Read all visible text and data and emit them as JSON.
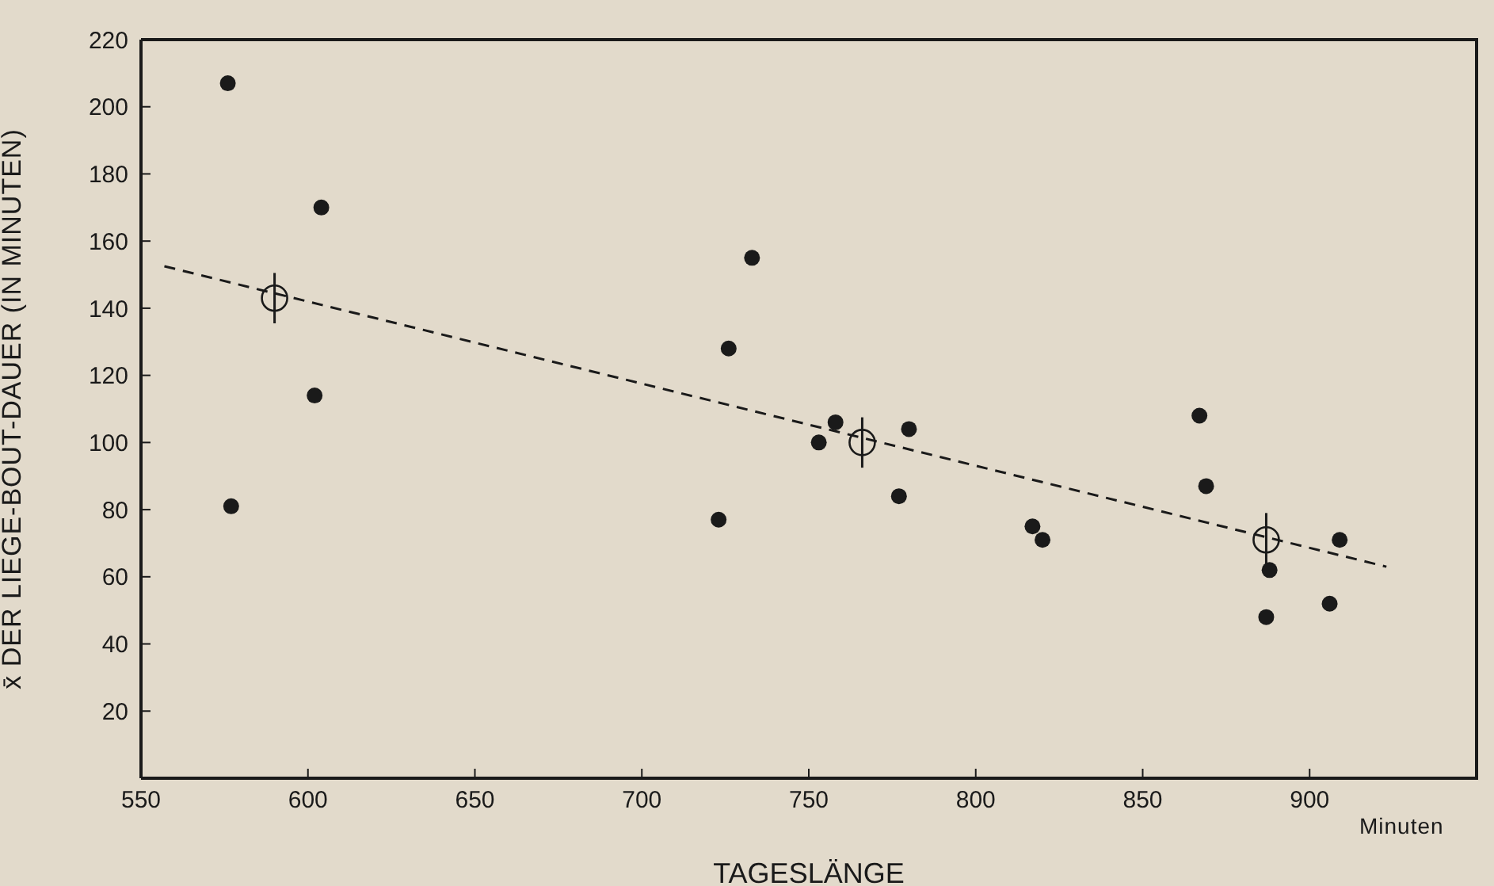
{
  "chart_data": {
    "type": "scatter",
    "xlabel": "TAGESLÄNGE",
    "ylabel": "x̄ DER LIEGE-BOUT-DAUER (IN MINUTEN)",
    "xlim": [
      550,
      950
    ],
    "xticks": [
      550,
      600,
      650,
      700,
      750,
      800,
      850,
      900
    ],
    "ylim": [
      0,
      220
    ],
    "yticks": [
      20,
      40,
      60,
      80,
      100,
      120,
      140,
      160,
      180,
      200,
      220
    ],
    "grid": false,
    "annotations": [
      "Minuten"
    ],
    "series": [
      {
        "color": "#1a1a1a",
        "marker": "circle",
        "x": [
          576,
          604,
          602,
          577,
          733,
          726,
          723,
          758,
          753,
          780,
          777,
          817,
          820,
          869,
          867,
          888,
          887,
          906,
          909
        ],
        "values": [
          207,
          170,
          114,
          81,
          155,
          128,
          77,
          106,
          100,
          104,
          84,
          75,
          71,
          87,
          108,
          62,
          48,
          52,
          71
        ]
      },
      {
        "color": "#1a1a1a",
        "marker": "circle",
        "x": [
          590,
          766,
          887
        ],
        "values": [
          143,
          100,
          71
        ],
        "errors": [
          7.5,
          7.5,
          8
        ]
      },
      {
        "type": "line",
        "color": "#1a1a1a",
        "line_style": "dashed",
        "marker": "none",
        "x": [
          557,
          923
        ],
        "values": [
          152.5,
          63
        ]
      }
    ]
  }
}
